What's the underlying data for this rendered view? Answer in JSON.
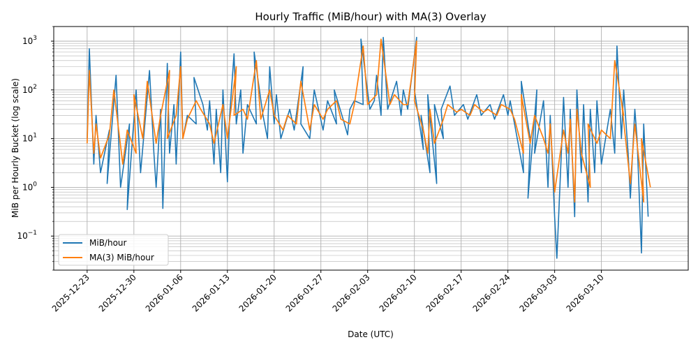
{
  "chart_data": {
    "type": "line",
    "title": "Hourly Traffic (MiB/hour) with MA(3) Overlay",
    "xlabel": "Date (UTC)",
    "ylabel": "MiB per Hourly Bucket (log scale)",
    "yscale": "log",
    "ylim": [
      0.02,
      2000
    ],
    "xlim": [
      "2025-12-18",
      "2026-03-23"
    ],
    "grid": "major-and-minor",
    "legend_position": "lower-left",
    "x_tick_labels": [
      "2025-12-23",
      "2025-12-30",
      "2026-01-06",
      "2026-01-13",
      "2026-01-20",
      "2026-01-27",
      "2026-02-03",
      "2026-02-10",
      "2026-02-17",
      "2026-02-24",
      "2026-03-03",
      "2026-03-10"
    ],
    "y_tick_labels": [
      {
        "base": "10",
        "exp": "−1",
        "value": 0.1
      },
      {
        "base": "10",
        "exp": "0",
        "value": 1
      },
      {
        "base": "10",
        "exp": "1",
        "value": 10
      },
      {
        "base": "10",
        "exp": "2",
        "value": 100
      },
      {
        "base": "10",
        "exp": "3",
        "value": 1000
      }
    ],
    "colors": {
      "raw": "#1f77b4",
      "ma": "#ff7f0e",
      "grid": "#b0b0b0"
    },
    "series": [
      {
        "name": "MiB/hour",
        "points": [
          [
            "2025-12-23",
            10
          ],
          [
            "2025-12-23",
            700
          ],
          [
            "2025-12-24",
            3
          ],
          [
            "2025-12-24",
            30
          ],
          [
            "2025-12-25",
            2
          ],
          [
            "2025-12-26",
            15
          ],
          [
            "2025-12-26",
            1.2
          ],
          [
            "2025-12-27",
            200
          ],
          [
            "2025-12-28",
            1
          ],
          [
            "2025-12-29",
            20
          ],
          [
            "2025-12-29",
            0.35
          ],
          [
            "2025-12-30",
            100
          ],
          [
            "2025-12-31",
            2
          ],
          [
            "2026-01-01",
            250
          ],
          [
            "2026-01-02",
            5
          ],
          [
            "2026-01-02",
            1
          ],
          [
            "2026-01-03",
            40
          ],
          [
            "2026-01-03",
            0.37
          ],
          [
            "2026-01-04",
            350
          ],
          [
            "2026-01-04",
            5
          ],
          [
            "2026-01-05",
            50
          ],
          [
            "2026-01-05",
            3
          ],
          [
            "2026-01-06",
            600
          ],
          [
            "2026-01-06",
            10
          ],
          [
            "2026-01-07",
            30
          ],
          [
            "2026-01-08",
            20
          ],
          [
            "2026-01-08",
            180
          ],
          [
            "2026-01-09",
            50
          ],
          [
            "2026-01-10",
            15
          ],
          [
            "2026-01-10",
            60
          ],
          [
            "2026-01-11",
            3
          ],
          [
            "2026-01-11",
            40
          ],
          [
            "2026-01-12",
            2
          ],
          [
            "2026-01-12",
            100
          ],
          [
            "2026-01-13",
            1.3
          ],
          [
            "2026-01-13",
            30
          ],
          [
            "2026-01-14",
            550
          ],
          [
            "2026-01-14",
            20
          ],
          [
            "2026-01-15",
            100
          ],
          [
            "2026-01-15",
            5
          ],
          [
            "2026-01-16",
            50
          ],
          [
            "2026-01-17",
            20
          ],
          [
            "2026-01-17",
            600
          ],
          [
            "2026-01-18",
            30
          ],
          [
            "2026-01-19",
            10
          ],
          [
            "2026-01-19",
            300
          ],
          [
            "2026-01-20",
            20
          ],
          [
            "2026-01-20",
            80
          ],
          [
            "2026-01-21",
            10
          ],
          [
            "2026-01-22",
            40
          ],
          [
            "2026-01-23",
            15
          ],
          [
            "2026-01-24",
            300
          ],
          [
            "2026-01-24",
            20
          ],
          [
            "2026-01-25",
            10
          ],
          [
            "2026-01-26",
            100
          ],
          [
            "2026-01-27",
            15
          ],
          [
            "2026-01-28",
            60
          ],
          [
            "2026-01-29",
            20
          ],
          [
            "2026-01-29",
            100
          ],
          [
            "2026-01-30",
            25
          ],
          [
            "2026-01-31",
            12
          ],
          [
            "2026-01-31",
            40
          ],
          [
            "2026-02-01",
            60
          ],
          [
            "2026-02-02",
            50
          ],
          [
            "2026-02-02",
            1100
          ],
          [
            "2026-02-03",
            40
          ],
          [
            "2026-02-04",
            60
          ],
          [
            "2026-02-04",
            200
          ],
          [
            "2026-02-05",
            30
          ],
          [
            "2026-02-05",
            1200
          ],
          [
            "2026-02-06",
            40
          ],
          [
            "2026-02-07",
            150
          ],
          [
            "2026-02-08",
            30
          ],
          [
            "2026-02-08",
            100
          ],
          [
            "2026-02-09",
            40
          ],
          [
            "2026-02-10",
            1200
          ],
          [
            "2026-02-10",
            100
          ],
          [
            "2026-02-11",
            6
          ],
          [
            "2026-02-11",
            30
          ],
          [
            "2026-02-12",
            2
          ],
          [
            "2026-02-12",
            80
          ],
          [
            "2026-02-13",
            1.2
          ],
          [
            "2026-02-13",
            50
          ],
          [
            "2026-02-14",
            10
          ],
          [
            "2026-02-14",
            40
          ],
          [
            "2026-02-15",
            120
          ],
          [
            "2026-02-16",
            30
          ],
          [
            "2026-02-17",
            50
          ],
          [
            "2026-02-18",
            25
          ],
          [
            "2026-02-19",
            80
          ],
          [
            "2026-02-20",
            30
          ],
          [
            "2026-02-21",
            50
          ],
          [
            "2026-02-22",
            25
          ],
          [
            "2026-02-23",
            80
          ],
          [
            "2026-02-24",
            30
          ],
          [
            "2026-02-24",
            60
          ],
          [
            "2026-02-25",
            20
          ],
          [
            "2026-02-26",
            2
          ],
          [
            "2026-02-26",
            150
          ],
          [
            "2026-02-27",
            10
          ],
          [
            "2026-02-27",
            0.6
          ],
          [
            "2026-02-28",
            100
          ],
          [
            "2026-02-28",
            5
          ],
          [
            "2026-03-01",
            60
          ],
          [
            "2026-03-02",
            1
          ],
          [
            "2026-03-02",
            30
          ],
          [
            "2026-03-03",
            0.25
          ],
          [
            "2026-03-03",
            0.035
          ],
          [
            "2026-03-04",
            5
          ],
          [
            "2026-03-04",
            70
          ],
          [
            "2026-03-05",
            1
          ],
          [
            "2026-03-05",
            40
          ],
          [
            "2026-03-06",
            0.25
          ],
          [
            "2026-03-06",
            100
          ],
          [
            "2026-03-07",
            2
          ],
          [
            "2026-03-07",
            50
          ],
          [
            "2026-03-08",
            0.5
          ],
          [
            "2026-03-08",
            40
          ],
          [
            "2026-03-09",
            2
          ],
          [
            "2026-03-09",
            60
          ],
          [
            "2026-03-10",
            3
          ],
          [
            "2026-03-11",
            40
          ],
          [
            "2026-03-12",
            5
          ],
          [
            "2026-03-12",
            800
          ],
          [
            "2026-03-13",
            10
          ],
          [
            "2026-03-13",
            100
          ],
          [
            "2026-03-14",
            5
          ],
          [
            "2026-03-14",
            0.6
          ],
          [
            "2026-03-15",
            40
          ],
          [
            "2026-03-15",
            10
          ],
          [
            "2026-03-16",
            0.045
          ],
          [
            "2026-03-16",
            20
          ],
          [
            "2026-03-17",
            0.25
          ]
        ]
      },
      {
        "name": "MA(3) MiB/hour",
        "points": [
          [
            "2025-12-23",
            8
          ],
          [
            "2025-12-23",
            250
          ],
          [
            "2025-12-24",
            5
          ],
          [
            "2025-12-24",
            20
          ],
          [
            "2025-12-25",
            4
          ],
          [
            "2025-12-26",
            12
          ],
          [
            "2025-12-27",
            100
          ],
          [
            "2025-12-28",
            3
          ],
          [
            "2025-12-29",
            15
          ],
          [
            "2025-12-30",
            5
          ],
          [
            "2025-12-30",
            80
          ],
          [
            "2025-12-31",
            10
          ],
          [
            "2026-01-01",
            150
          ],
          [
            "2026-01-02",
            8
          ],
          [
            "2026-01-03",
            30
          ],
          [
            "2026-01-04",
            250
          ],
          [
            "2026-01-04",
            10
          ],
          [
            "2026-01-05",
            30
          ],
          [
            "2026-01-06",
            300
          ],
          [
            "2026-01-06",
            10
          ],
          [
            "2026-01-07",
            25
          ],
          [
            "2026-01-08",
            60
          ],
          [
            "2026-01-09",
            40
          ],
          [
            "2026-01-10",
            20
          ],
          [
            "2026-01-11",
            8
          ],
          [
            "2026-01-12",
            50
          ],
          [
            "2026-01-13",
            10
          ],
          [
            "2026-01-14",
            300
          ],
          [
            "2026-01-14",
            30
          ],
          [
            "2026-01-15",
            40
          ],
          [
            "2026-01-16",
            25
          ],
          [
            "2026-01-17",
            400
          ],
          [
            "2026-01-18",
            25
          ],
          [
            "2026-01-19",
            100
          ],
          [
            "2026-01-20",
            30
          ],
          [
            "2026-01-21",
            15
          ],
          [
            "2026-01-22",
            30
          ],
          [
            "2026-01-23",
            20
          ],
          [
            "2026-01-24",
            150
          ],
          [
            "2026-01-25",
            15
          ],
          [
            "2026-01-26",
            50
          ],
          [
            "2026-01-27",
            25
          ],
          [
            "2026-01-28",
            40
          ],
          [
            "2026-01-29",
            60
          ],
          [
            "2026-01-30",
            25
          ],
          [
            "2026-01-31",
            20
          ],
          [
            "2026-02-01",
            50
          ],
          [
            "2026-02-02",
            800
          ],
          [
            "2026-02-03",
            50
          ],
          [
            "2026-02-04",
            80
          ],
          [
            "2026-02-05",
            1100
          ],
          [
            "2026-02-06",
            50
          ],
          [
            "2026-02-07",
            80
          ],
          [
            "2026-02-08",
            50
          ],
          [
            "2026-02-09",
            50
          ],
          [
            "2026-02-10",
            1000
          ],
          [
            "2026-02-10",
            60
          ],
          [
            "2026-02-11",
            15
          ],
          [
            "2026-02-12",
            5
          ],
          [
            "2026-02-12",
            40
          ],
          [
            "2026-02-13",
            8
          ],
          [
            "2026-02-14",
            25
          ],
          [
            "2026-02-15",
            50
          ],
          [
            "2026-02-16",
            35
          ],
          [
            "2026-02-17",
            40
          ],
          [
            "2026-02-18",
            30
          ],
          [
            "2026-02-19",
            50
          ],
          [
            "2026-02-20",
            35
          ],
          [
            "2026-02-21",
            40
          ],
          [
            "2026-02-22",
            30
          ],
          [
            "2026-02-23",
            50
          ],
          [
            "2026-02-24",
            40
          ],
          [
            "2026-02-25",
            25
          ],
          [
            "2026-02-26",
            5
          ],
          [
            "2026-02-26",
            80
          ],
          [
            "2026-02-27",
            8
          ],
          [
            "2026-02-28",
            30
          ],
          [
            "2026-03-01",
            10
          ],
          [
            "2026-03-02",
            5
          ],
          [
            "2026-03-02",
            20
          ],
          [
            "2026-03-03",
            0.8
          ],
          [
            "2026-03-04",
            15
          ],
          [
            "2026-03-05",
            5
          ],
          [
            "2026-03-05",
            25
          ],
          [
            "2026-03-06",
            0.5
          ],
          [
            "2026-03-06",
            40
          ],
          [
            "2026-03-07",
            5
          ],
          [
            "2026-03-08",
            1
          ],
          [
            "2026-03-08",
            20
          ],
          [
            "2026-03-09",
            8
          ],
          [
            "2026-03-10",
            15
          ],
          [
            "2026-03-11",
            10
          ],
          [
            "2026-03-12",
            400
          ],
          [
            "2026-03-13",
            30
          ],
          [
            "2026-03-13",
            60
          ],
          [
            "2026-03-14",
            1.2
          ],
          [
            "2026-03-15",
            20
          ],
          [
            "2026-03-16",
            0.5
          ],
          [
            "2026-03-16",
            10
          ],
          [
            "2026-03-17",
            1
          ]
        ]
      }
    ]
  }
}
